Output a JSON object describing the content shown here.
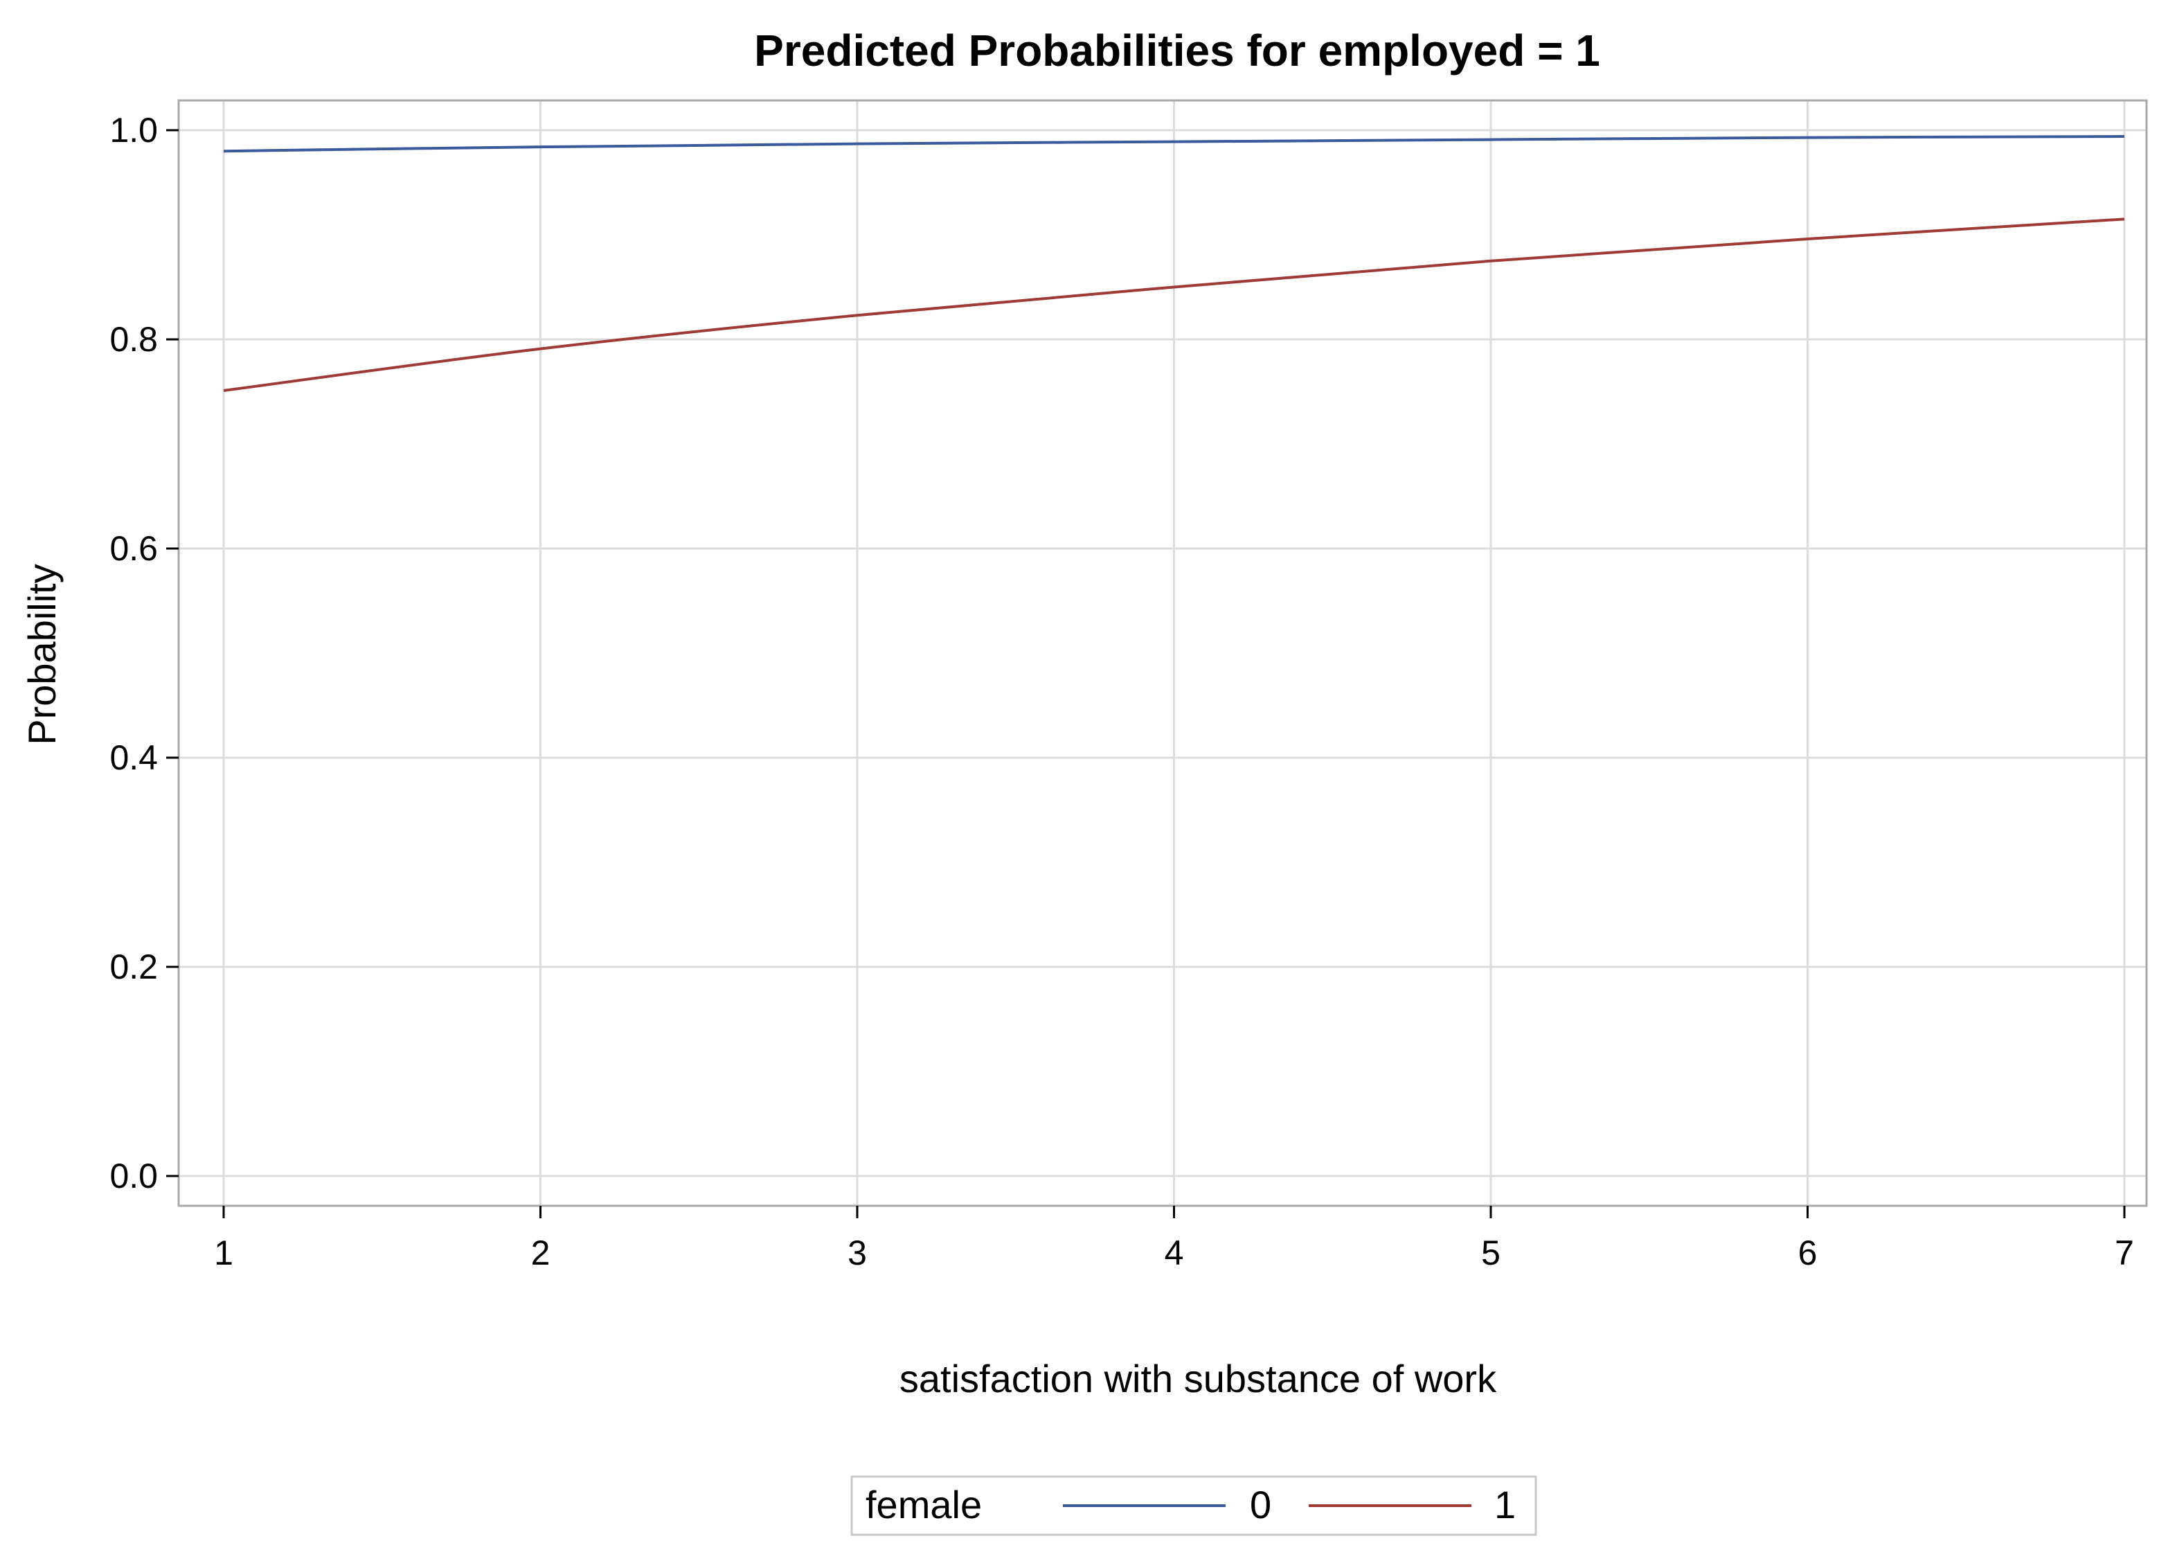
{
  "chart_data": {
    "type": "line",
    "title": "Predicted Probabilities for employed = 1",
    "xlabel": "satisfaction with substance of work",
    "ylabel": "Probability",
    "xlim": [
      1,
      7
    ],
    "ylim": [
      0,
      1
    ],
    "x_ticks": [
      "1",
      "2",
      "3",
      "4",
      "5",
      "6",
      "7"
    ],
    "y_ticks": [
      "0.0",
      "0.2",
      "0.4",
      "0.6",
      "0.8",
      "1.0"
    ],
    "grid": true,
    "legend": {
      "title": "female",
      "placement": "bottom-center",
      "entries": [
        "0",
        "1"
      ]
    },
    "series": [
      {
        "name": "0",
        "color": "#3a5a9c",
        "x": [
          1,
          2,
          3,
          4,
          5,
          6,
          7
        ],
        "y": [
          0.98,
          0.984,
          0.987,
          0.989,
          0.991,
          0.993,
          0.994
        ]
      },
      {
        "name": "1",
        "color": "#a03a35",
        "x": [
          1,
          2,
          3,
          4,
          5,
          6,
          7
        ],
        "y": [
          0.751,
          0.791,
          0.823,
          0.85,
          0.875,
          0.896,
          0.915
        ]
      }
    ]
  }
}
